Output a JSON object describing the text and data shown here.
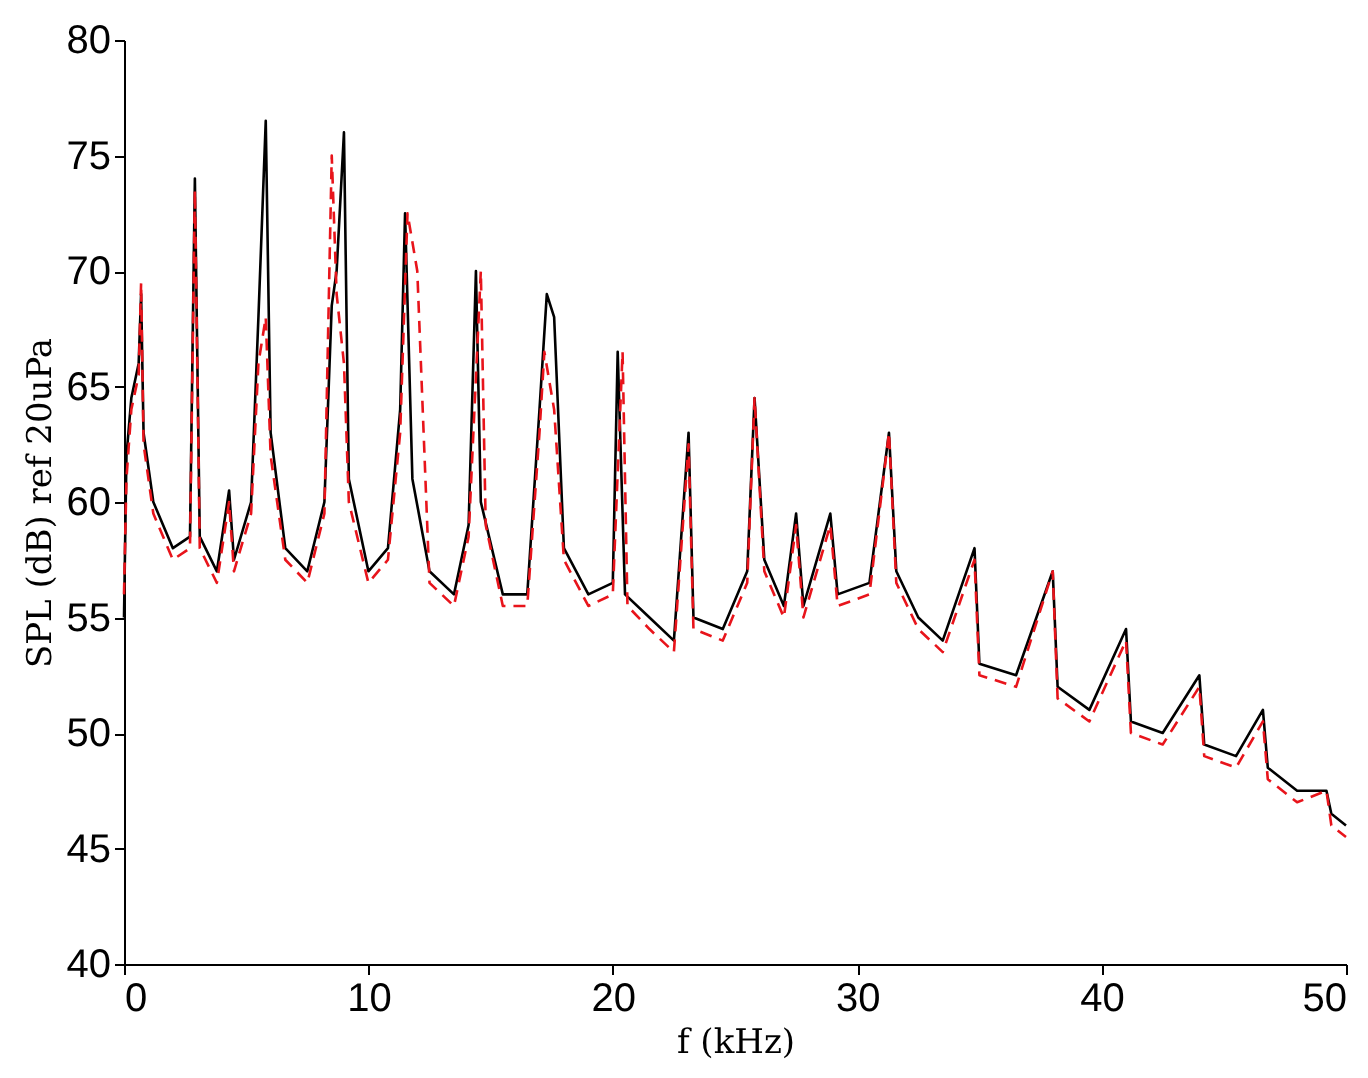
{
  "chart_data": {
    "type": "line",
    "xlabel": "f (kHz)",
    "ylabel": "SPL (dB) ref 20uPa",
    "xlim": [
      0,
      50
    ],
    "ylim": [
      40,
      80
    ],
    "xticks": [
      0,
      10,
      20,
      30,
      40,
      50
    ],
    "yticks": [
      40,
      45,
      50,
      55,
      60,
      65,
      70,
      75,
      80
    ],
    "grid": false,
    "marker": "none",
    "series": [
      {
        "color": "#000000",
        "line_style": "solid",
        "x": [
          0,
          0.1,
          0.3,
          0.6,
          0.7,
          0.8,
          1.2,
          2,
          2.7,
          2.9,
          3.1,
          3.8,
          4.3,
          4.5,
          5.2,
          5.5,
          5.8,
          6.0,
          6.6,
          7.5,
          8.2,
          8.5,
          8.7,
          9.0,
          9.2,
          10,
          10.8,
          11.3,
          11.5,
          11.8,
          12.5,
          13.5,
          14.1,
          14.4,
          14.6,
          15.5,
          16.5,
          17,
          17.3,
          17.6,
          18,
          19,
          20,
          20.2,
          20.5,
          21.5,
          22.5,
          23.1,
          23.3,
          24.5,
          25.5,
          25.8,
          26.2,
          27,
          27.5,
          27.8,
          28.9,
          29.2,
          30.5,
          31.3,
          31.6,
          32.5,
          33.5,
          34.8,
          35,
          36.5,
          38,
          38.2,
          39.5,
          41,
          41.2,
          42.5,
          44,
          44.2,
          45.5,
          46.6,
          46.8,
          48,
          49.2,
          49.4,
          50
        ],
        "values": [
          55,
          62,
          64.5,
          66,
          69,
          63,
          60,
          58,
          58.5,
          74,
          58.5,
          57,
          60.5,
          57.5,
          60,
          68,
          76.5,
          63,
          58,
          57,
          60,
          68.5,
          70,
          76,
          61,
          57,
          58,
          64,
          72.5,
          61,
          57,
          56,
          59,
          70,
          60,
          56,
          56,
          64,
          69,
          68,
          58,
          56,
          56.5,
          66.5,
          56,
          55,
          54,
          63,
          55,
          54.5,
          57,
          64.5,
          57.5,
          55.5,
          59.5,
          55.5,
          59.5,
          56,
          56.5,
          63,
          57,
          55,
          54,
          58,
          53,
          52.5,
          57,
          52,
          51,
          54.5,
          50.5,
          50,
          52.5,
          49.5,
          49,
          51,
          48.5,
          47.5,
          47.5,
          46.5,
          46
        ]
      },
      {
        "color": "#e8141b",
        "line_style": "dashed",
        "x": [
          0,
          0.1,
          0.3,
          0.6,
          0.7,
          0.8,
          1.2,
          2,
          2.7,
          2.9,
          3.1,
          3.8,
          4.3,
          4.5,
          5.2,
          5.5,
          5.8,
          6.0,
          6.6,
          7.5,
          8.2,
          8.5,
          8.7,
          9.0,
          9.2,
          10,
          10.8,
          11.3,
          11.6,
          12.0,
          12.5,
          13.5,
          14.1,
          14.6,
          14.8,
          15.5,
          16.5,
          17,
          17.2,
          17.6,
          18,
          19,
          20,
          20.4,
          20.6,
          21.5,
          22.5,
          23.1,
          23.3,
          24.5,
          25.5,
          25.8,
          26.2,
          27,
          27.5,
          27.8,
          28.9,
          29.2,
          30.5,
          31.3,
          31.6,
          32.5,
          33.5,
          34.8,
          35,
          36.5,
          38,
          38.2,
          39.5,
          41,
          41.2,
          42.5,
          44,
          44.2,
          45.5,
          46.6,
          46.8,
          48,
          49.2,
          49.4,
          50
        ],
        "values": [
          56,
          61,
          64,
          65.5,
          69.5,
          62.5,
          59.5,
          57.5,
          58,
          73.5,
          58,
          56.5,
          60,
          57,
          59.5,
          66,
          68,
          62,
          57.5,
          56.5,
          59.5,
          75,
          69,
          66,
          60,
          56.5,
          57.5,
          63,
          72.5,
          70,
          56.5,
          55.5,
          58.5,
          70,
          59,
          55.5,
          55.5,
          63,
          66.5,
          64,
          57.5,
          55.5,
          56,
          66.5,
          55.5,
          54.5,
          53.5,
          62.5,
          54.5,
          54,
          56.5,
          64.5,
          57,
          55,
          59,
          55,
          59,
          55.5,
          56,
          63,
          56.5,
          54.5,
          53.5,
          57.5,
          52.5,
          52,
          57,
          51.5,
          50.5,
          54,
          50,
          49.5,
          52,
          49,
          48.5,
          50.5,
          48,
          47,
          47.5,
          46,
          45.5
        ]
      }
    ]
  }
}
